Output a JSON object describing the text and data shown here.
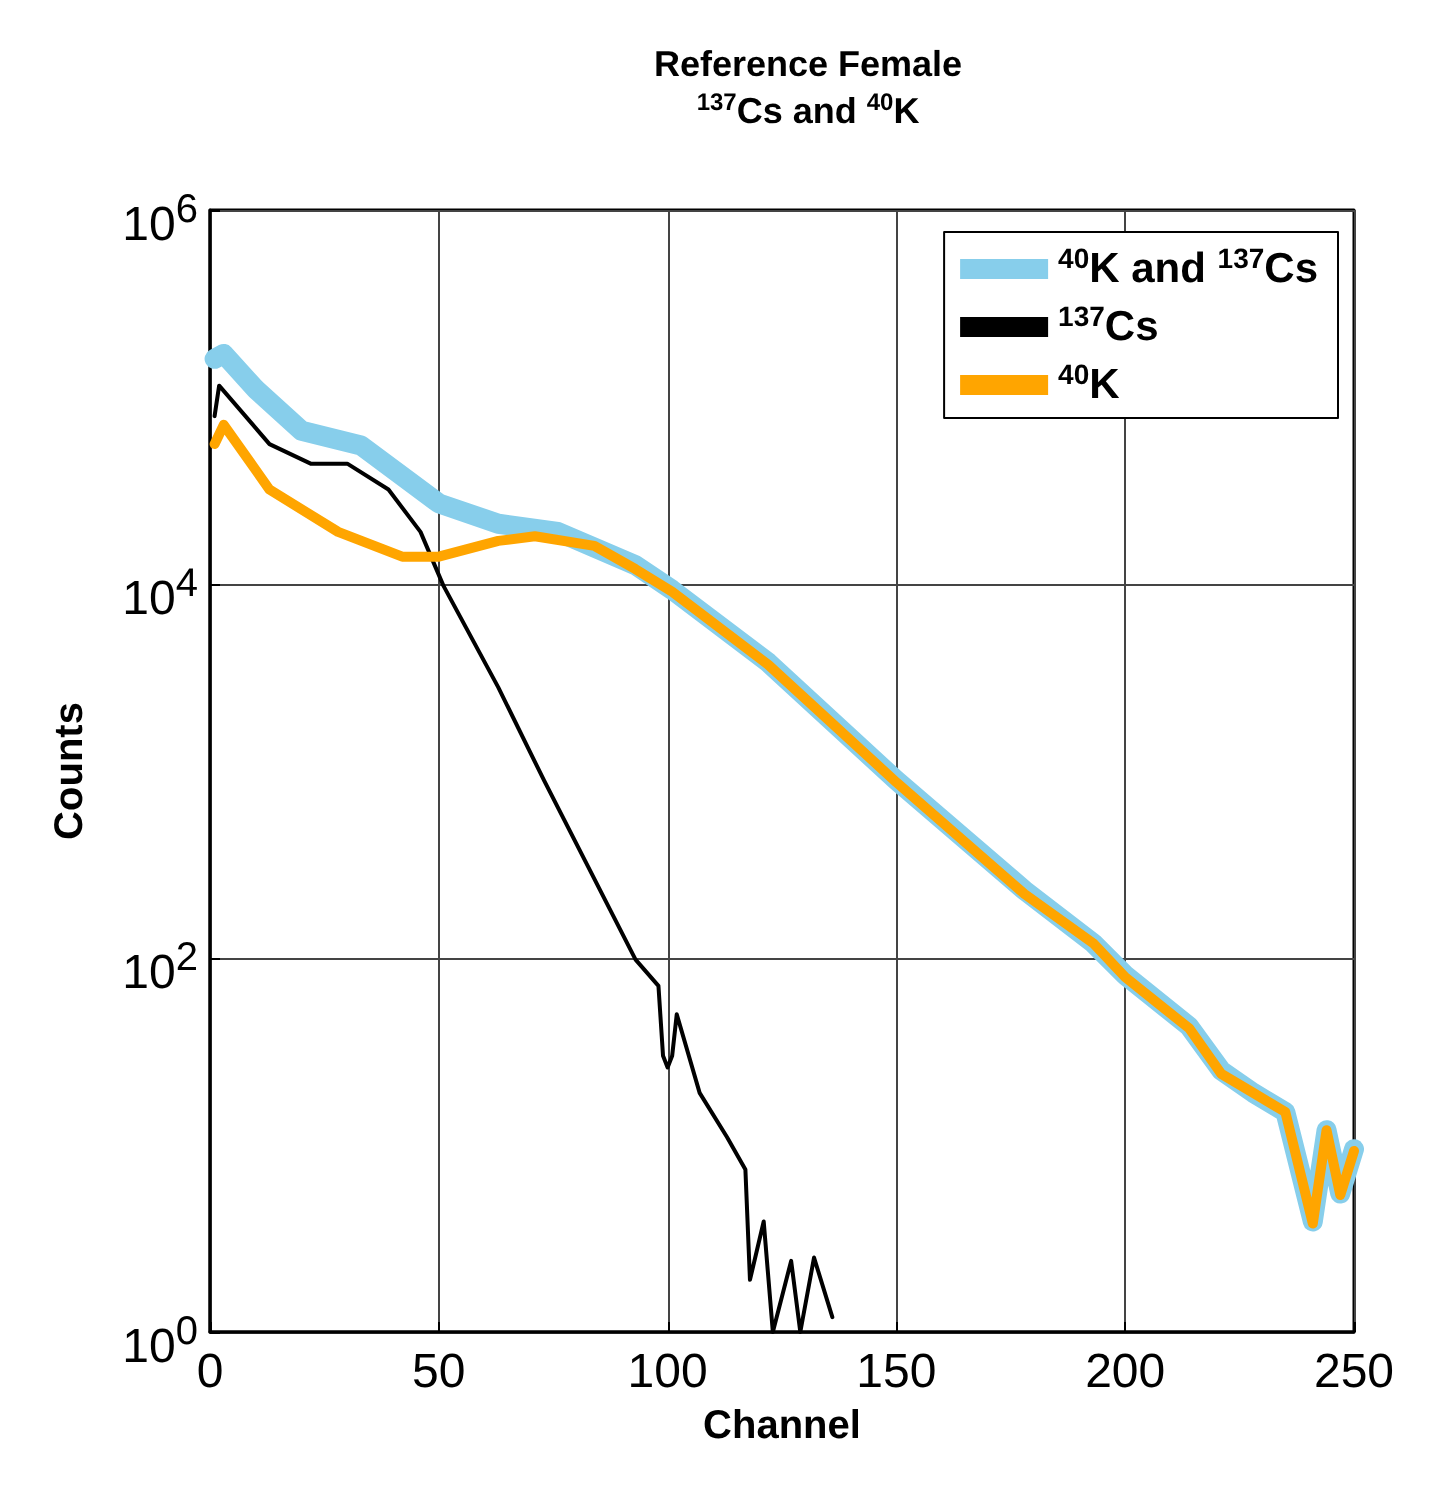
{
  "chart_data": {
    "type": "line",
    "title": "Reference Female",
    "subtitle": "$^{137}$Cs and $^{40}$K",
    "xlabel": "Channel",
    "ylabel": "Counts",
    "log": "y",
    "grid": true,
    "legend": "top right",
    "marker": "none",
    "line_style": "solid",
    "xlim": [
      0,
      250
    ],
    "xticks": [
      0,
      50,
      100,
      150,
      200,
      250
    ],
    "ylim": [
      1,
      1000000
    ],
    "yticks": [
      {
        "value": 1,
        "label": "10$^{0}$"
      },
      {
        "value": 100,
        "label": "10$^{2}$"
      },
      {
        "value": 10000,
        "label": "10$^{4}$"
      },
      {
        "value": 1000000,
        "label": "10$^{6}$"
      }
    ],
    "series": [
      {
        "name": "$^{40}$K and $^{137}$Cs",
        "color": "#87ceeb",
        "x": [
          1,
          3,
          10,
          20,
          33,
          50,
          63,
          76,
          93,
          101,
          122,
          150,
          178,
          193,
          200,
          214,
          221,
          228,
          235,
          241,
          244,
          247,
          250
        ],
        "values": [
          160000,
          170000,
          110000,
          66000,
          55000,
          27000,
          21000,
          19000,
          12600,
          9300,
          3800,
          890,
          230,
          120,
          81,
          43,
          25,
          19,
          15,
          3.9,
          12,
          5.5,
          9.5
        ]
      },
      {
        "name": "$^{137}$Cs",
        "color": "#000000",
        "x": [
          1,
          2,
          13,
          22,
          30,
          39,
          46,
          51,
          63,
          73,
          93,
          98,
          99,
          100,
          101,
          102,
          107,
          113,
          117,
          118,
          121,
          123,
          127,
          129,
          132,
          136
        ],
        "values": [
          79000,
          115000,
          56000,
          44000,
          44000,
          32000,
          19000,
          9800,
          2800,
          890,
          98,
          71,
          30,
          26,
          30,
          50,
          19,
          11,
          7.4,
          1.9,
          3.9,
          1,
          2.4,
          1,
          2.5,
          1.2
        ]
      },
      {
        "name": "$^{40}$K",
        "color": "#ffa500",
        "x": [
          1,
          3,
          13,
          28,
          42,
          50,
          63,
          71,
          84,
          93,
          101,
          122,
          150,
          178,
          193,
          200,
          214,
          221,
          228,
          235,
          241,
          244,
          247,
          250
        ],
        "values": [
          56000,
          71000,
          32000,
          19000,
          14000,
          14000,
          17000,
          18000,
          16000,
          12000,
          9100,
          3700,
          870,
          220,
          120,
          79,
          42,
          24,
          19,
          15,
          3.8,
          12,
          5.4,
          9.3
        ]
      }
    ]
  }
}
